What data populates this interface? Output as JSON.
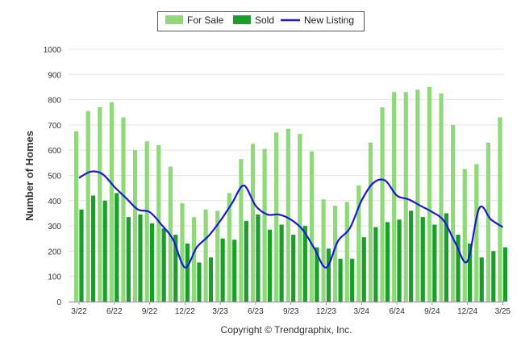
{
  "chart_data": {
    "type": "bar",
    "ylabel": "Number of Homes",
    "ylim": [
      0,
      1000
    ],
    "yticks": [
      0,
      100,
      200,
      300,
      400,
      500,
      600,
      700,
      800,
      900,
      1000
    ],
    "grid": true,
    "legend_position": "top-center",
    "footer": "Copyright © Trendgraphix, Inc.",
    "x_tick_labels": [
      "3/22",
      "6/22",
      "9/22",
      "12/22",
      "3/23",
      "6/23",
      "9/23",
      "12/23",
      "3/24",
      "6/24",
      "9/24",
      "12/24",
      "3/25"
    ],
    "categories": [
      "3/22",
      "4/22",
      "5/22",
      "6/22",
      "7/22",
      "8/22",
      "9/22",
      "10/22",
      "11/22",
      "12/22",
      "1/23",
      "2/23",
      "3/23",
      "4/23",
      "5/23",
      "6/23",
      "7/23",
      "8/23",
      "9/23",
      "10/23",
      "11/23",
      "12/23",
      "1/24",
      "2/24",
      "3/24",
      "4/24",
      "5/24",
      "6/24",
      "7/24",
      "8/24",
      "9/24",
      "10/24",
      "11/24",
      "12/24",
      "1/25",
      "2/25",
      "3/25"
    ],
    "series": [
      {
        "name": "For Sale",
        "type": "bar",
        "color": "#8fd97a",
        "values": [
          675,
          755,
          770,
          790,
          730,
          600,
          635,
          620,
          535,
          390,
          335,
          365,
          360,
          430,
          565,
          625,
          605,
          670,
          685,
          665,
          595,
          405,
          380,
          395,
          460,
          630,
          770,
          830,
          830,
          840,
          850,
          825,
          700,
          525,
          545,
          630,
          730
        ]
      },
      {
        "name": "Sold",
        "type": "bar",
        "color": "#1a9e2a",
        "values": [
          365,
          420,
          400,
          430,
          335,
          345,
          310,
          290,
          265,
          230,
          155,
          175,
          250,
          245,
          320,
          345,
          285,
          305,
          265,
          300,
          215,
          210,
          170,
          170,
          255,
          295,
          315,
          325,
          360,
          335,
          305,
          350,
          265,
          230,
          175,
          200,
          215
        ]
      },
      {
        "name": "New Listing",
        "type": "line",
        "color": "#1a1ad6",
        "values": [
          490,
          515,
          505,
          455,
          410,
          365,
          355,
          305,
          245,
          135,
          215,
          260,
          320,
          390,
          460,
          380,
          345,
          345,
          325,
          285,
          210,
          135,
          240,
          290,
          400,
          470,
          480,
          420,
          405,
          380,
          355,
          320,
          230,
          160,
          370,
          325,
          295
        ]
      }
    ]
  }
}
